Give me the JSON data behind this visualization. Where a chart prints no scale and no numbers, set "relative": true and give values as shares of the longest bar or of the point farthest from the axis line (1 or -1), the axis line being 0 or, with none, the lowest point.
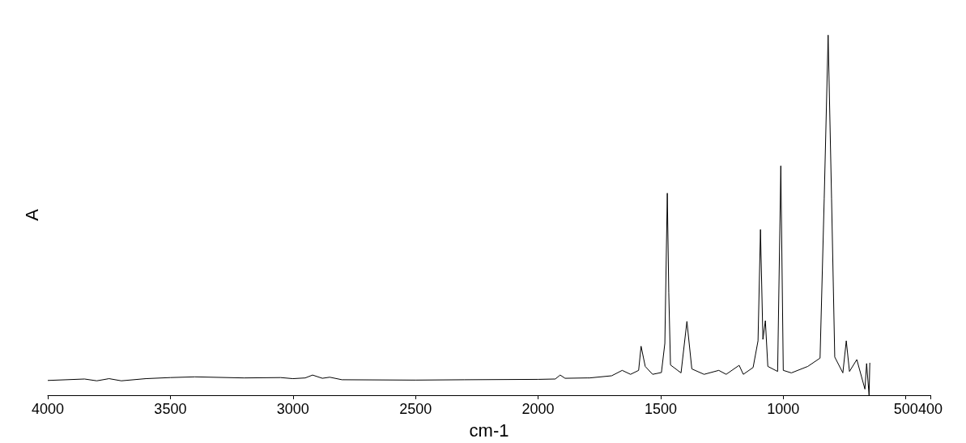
{
  "chart_data": {
    "type": "line",
    "xlabel": "cm-1",
    "ylabel": "A",
    "relative": true,
    "marker": "none",
    "line_style": "solid",
    "xlim": [
      4000,
      400
    ],
    "xticks": [
      4000,
      3500,
      3000,
      2500,
      2000,
      1500,
      1000,
      500,
      400
    ],
    "x": [
      4000,
      3850,
      3800,
      3750,
      3700,
      3600,
      3500,
      3400,
      3200,
      3050,
      3000,
      2950,
      2920,
      2880,
      2850,
      2800,
      2500,
      2300,
      2000,
      1930,
      1910,
      1890,
      1800,
      1790,
      1700,
      1657,
      1623,
      1590,
      1580,
      1563,
      1533,
      1497,
      1483,
      1473,
      1467,
      1460,
      1417,
      1393,
      1373,
      1323,
      1263,
      1233,
      1180,
      1163,
      1123,
      1103,
      1093,
      1083,
      1073,
      1063,
      1023,
      1010,
      1000,
      967,
      900,
      850,
      833,
      817,
      803,
      790,
      757,
      743,
      730,
      700,
      667,
      660,
      650,
      647
    ],
    "series": [
      {
        "color": "#000000",
        "values": [
          0.041,
          0.045,
          0.04,
          0.046,
          0.04,
          0.046,
          0.049,
          0.051,
          0.048,
          0.049,
          0.046,
          0.048,
          0.056,
          0.047,
          0.05,
          0.043,
          0.042,
          0.043,
          0.044,
          0.045,
          0.056,
          0.047,
          0.048,
          0.048,
          0.054,
          0.069,
          0.058,
          0.069,
          0.136,
          0.08,
          0.058,
          0.063,
          0.144,
          0.561,
          0.285,
          0.084,
          0.062,
          0.205,
          0.073,
          0.058,
          0.069,
          0.058,
          0.083,
          0.058,
          0.077,
          0.151,
          0.46,
          0.155,
          0.207,
          0.08,
          0.066,
          0.637,
          0.069,
          0.062,
          0.08,
          0.103,
          0.546,
          1.0,
          0.546,
          0.106,
          0.062,
          0.151,
          0.066,
          0.099,
          0.017,
          0.088,
          0,
          0.09
        ]
      }
    ]
  }
}
